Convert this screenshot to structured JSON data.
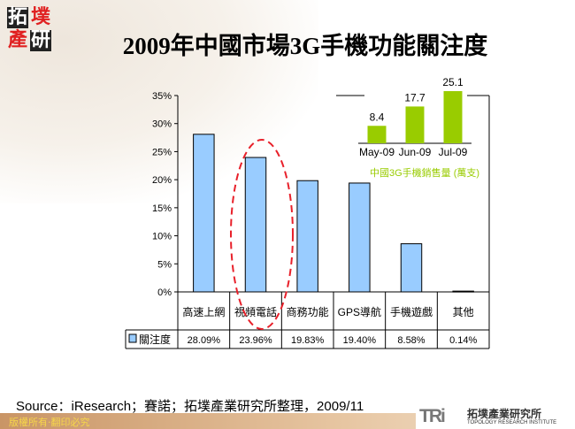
{
  "logo": {
    "chars": [
      "拓",
      "墣",
      "產",
      "研"
    ]
  },
  "title": "2009年中國市場3G手機功能關注度",
  "chart_data": [
    {
      "type": "bar",
      "categories": [
        "高速上網",
        "視頻電話",
        "商務功能",
        "GPS導航",
        "手機遊戲",
        "其他"
      ],
      "series": [
        {
          "name": "關注度",
          "values": [
            28.09,
            23.96,
            19.83,
            19.4,
            8.58,
            0.14
          ],
          "labels": [
            "28.09%",
            "23.96%",
            "19.83%",
            "19.40%",
            "8.58%",
            "0.14%"
          ],
          "color": "#99ccff"
        }
      ],
      "yticks": [
        "0%",
        "5%",
        "10%",
        "15%",
        "20%",
        "25%",
        "30%",
        "35%"
      ],
      "ylim": [
        0,
        35
      ],
      "data_table": true,
      "highlight": "視頻電話"
    },
    {
      "type": "bar",
      "title": "中國3G手機銷售量 (萬支)",
      "categories": [
        "May-09",
        "Jun-09",
        "Jul-09"
      ],
      "values": [
        8.4,
        17.7,
        25.1
      ],
      "labels": [
        "8.4",
        "17.7",
        "25.1"
      ],
      "color": "#99cc00"
    }
  ],
  "source": "Source：iResearch；賽諾；拓墣產業研究所整理，2009/11",
  "footer": {
    "copyright": "版權所有‧翻印必究"
  },
  "brand": {
    "mark": "TRi",
    "name_cn": "拓墣產業研究所",
    "name_en": "TOPOLOGY RESEARCH INSTITUTE"
  }
}
